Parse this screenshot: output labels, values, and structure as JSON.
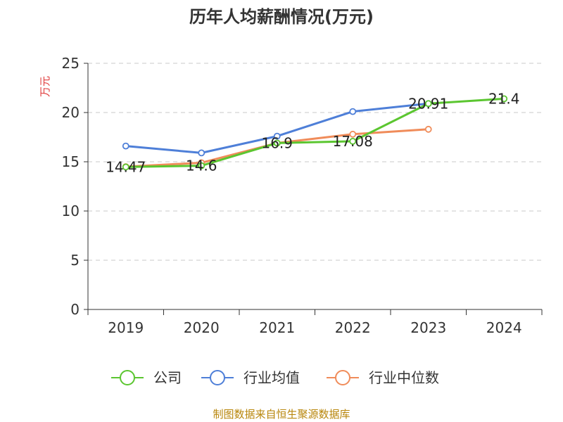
{
  "chart_data": {
    "type": "line",
    "title": "历年人均薪酬情况(万元)",
    "ylabel": "万元",
    "source": "制图数据来自恒生聚源数据库",
    "categories": [
      "2019",
      "2020",
      "2021",
      "2022",
      "2023",
      "2024"
    ],
    "ylim": [
      0,
      25
    ],
    "yticks": [
      0,
      5,
      10,
      15,
      20,
      25
    ],
    "grid": true,
    "legend_position": "bottom",
    "series": [
      {
        "name": "公司",
        "color": "#5bc630",
        "values": [
          14.47,
          14.6,
          16.9,
          17.08,
          20.91,
          21.4
        ],
        "show_labels": true
      },
      {
        "name": "行业均值",
        "color": "#4e7fd8",
        "values": [
          16.6,
          15.9,
          17.6,
          20.1,
          20.91,
          null
        ],
        "show_labels": false
      },
      {
        "name": "行业中位数",
        "color": "#f08c5a",
        "values": [
          14.5,
          14.9,
          16.9,
          17.8,
          18.3,
          null
        ],
        "show_labels": false
      }
    ]
  }
}
